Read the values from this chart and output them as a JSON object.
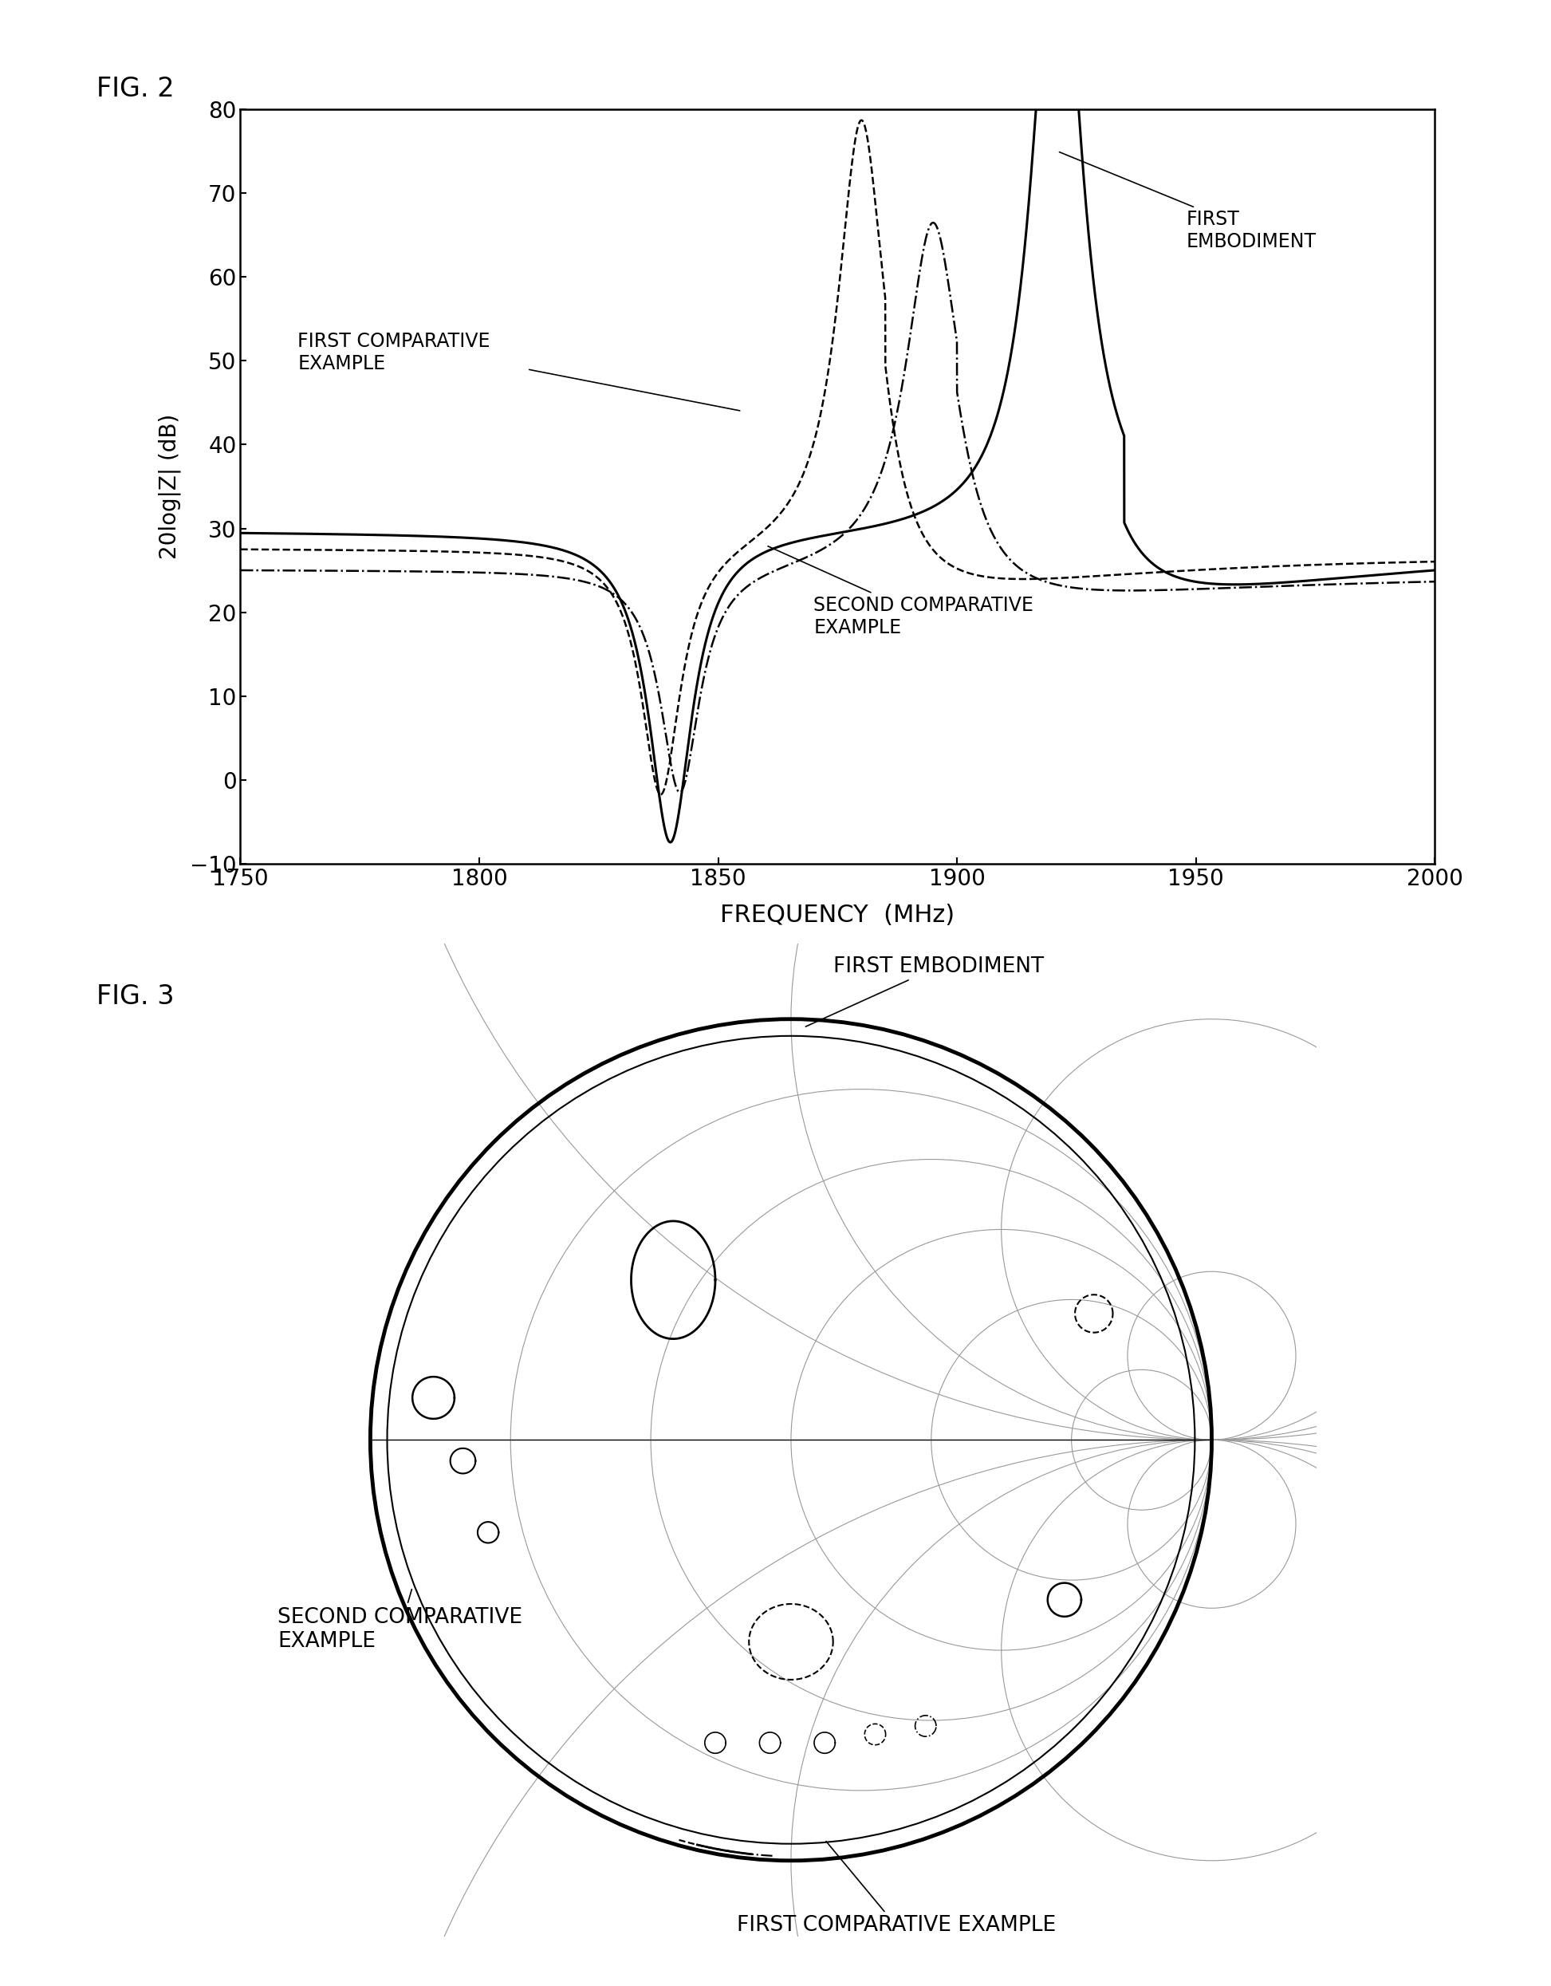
{
  "fig2_title": "FIG. 2",
  "fig3_title": "FIG. 3",
  "xlabel": "FREQUENCY  (MHz)",
  "ylabel": "20log|Z| (dB)",
  "xlim": [
    1750,
    2000
  ],
  "ylim": [
    -10,
    80
  ],
  "yticks": [
    -10,
    0,
    10,
    20,
    30,
    40,
    50,
    60,
    70,
    80
  ],
  "xticks": [
    1750,
    1800,
    1850,
    1900,
    1950,
    2000
  ],
  "bg_color": "#ffffff",
  "line_color": "#000000"
}
